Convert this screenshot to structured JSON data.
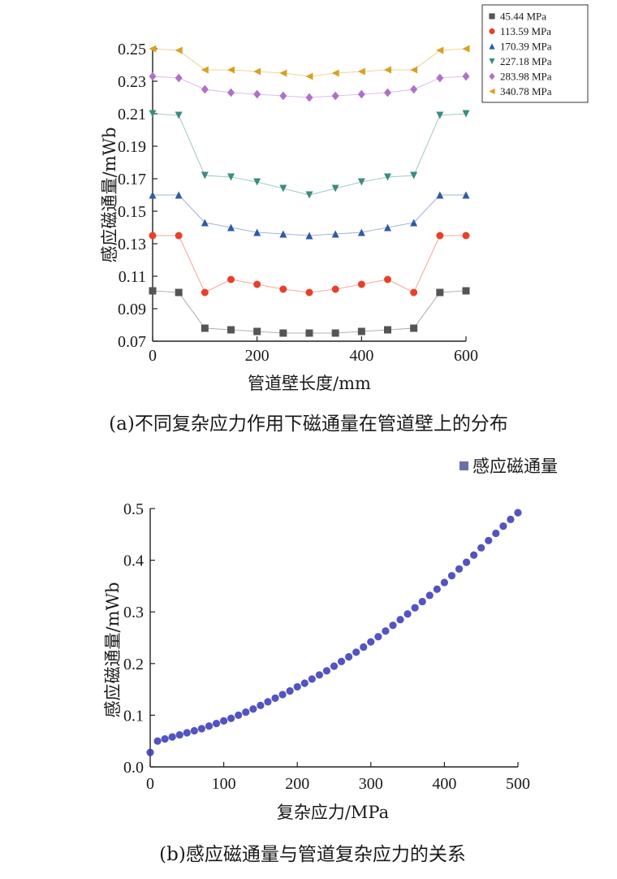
{
  "chart_data": [
    {
      "type": "line",
      "caption": "(a)不同复杂应力作用下磁通量在管道壁上的分布",
      "xlabel": "管道壁长度/mm",
      "ylabel": "感应磁通量/mWb",
      "xlim": [
        0,
        600
      ],
      "ylim": [
        0.07,
        0.25
      ],
      "xticks": [
        "0",
        "200",
        "400",
        "600"
      ],
      "yticks": [
        "0.07",
        "0.09",
        "0.11",
        "0.13",
        "0.15",
        "0.17",
        "0.19",
        "0.21",
        "0.23",
        "0.25"
      ],
      "grid": false,
      "legend": "top-right",
      "x": [
        0,
        50,
        100,
        150,
        200,
        250,
        300,
        350,
        400,
        450,
        500,
        550,
        600
      ],
      "series": [
        {
          "name": "45.44 MPa",
          "marker": "square",
          "color": "#555555",
          "values": [
            0.101,
            0.1,
            0.078,
            0.077,
            0.076,
            0.075,
            0.075,
            0.075,
            0.076,
            0.077,
            0.078,
            0.1,
            0.101
          ]
        },
        {
          "name": "113.59 MPa",
          "marker": "circle",
          "color": "#e8402a",
          "values": [
            0.135,
            0.135,
            0.1,
            0.108,
            0.105,
            0.102,
            0.1,
            0.102,
            0.105,
            0.108,
            0.1,
            0.135,
            0.135
          ]
        },
        {
          "name": "170.39 MPa",
          "marker": "triangle",
          "color": "#2f5aa8",
          "values": [
            0.16,
            0.16,
            0.143,
            0.14,
            0.137,
            0.136,
            0.135,
            0.136,
            0.137,
            0.14,
            0.143,
            0.16,
            0.16
          ]
        },
        {
          "name": "227.18 MPa",
          "marker": "triangle-down",
          "color": "#3a8c80",
          "values": [
            0.21,
            0.209,
            0.172,
            0.171,
            0.168,
            0.164,
            0.16,
            0.164,
            0.168,
            0.171,
            0.172,
            0.209,
            0.21
          ]
        },
        {
          "name": "283.98 MPa",
          "marker": "diamond",
          "color": "#b070c8",
          "values": [
            0.233,
            0.232,
            0.225,
            0.223,
            0.222,
            0.221,
            0.22,
            0.221,
            0.222,
            0.223,
            0.225,
            0.232,
            0.233
          ]
        },
        {
          "name": "340.78 MPa",
          "marker": "triangle-left",
          "color": "#d9a020",
          "values": [
            0.25,
            0.249,
            0.237,
            0.237,
            0.236,
            0.235,
            0.233,
            0.235,
            0.236,
            0.237,
            0.237,
            0.249,
            0.25
          ]
        }
      ]
    },
    {
      "type": "scatter",
      "caption": "(b)感应磁通量与管道复杂应力的关系",
      "xlabel": "复杂应力/MPa",
      "ylabel": "感应磁通量/mWb",
      "xlim": [
        0,
        500
      ],
      "ylim": [
        0,
        0.5
      ],
      "xticks": [
        "0",
        "100",
        "200",
        "300",
        "400",
        "500"
      ],
      "yticks": [
        "0.0",
        "0.1",
        "0.2",
        "0.3",
        "0.4",
        "0.5"
      ],
      "grid": false,
      "legend": "top-right",
      "series": [
        {
          "name": "感应磁通量",
          "color": "#3535b8",
          "x": [
            0,
            10,
            20,
            30,
            40,
            50,
            60,
            70,
            80,
            90,
            100,
            110,
            120,
            130,
            140,
            150,
            160,
            170,
            180,
            190,
            200,
            210,
            220,
            230,
            240,
            250,
            260,
            270,
            280,
            290,
            300,
            310,
            320,
            330,
            340,
            350,
            360,
            370,
            380,
            390,
            400,
            410,
            420,
            430,
            440,
            450,
            460,
            470,
            480,
            490,
            500
          ],
          "y": [
            0.028,
            0.05,
            0.054,
            0.058,
            0.062,
            0.066,
            0.07,
            0.074,
            0.079,
            0.084,
            0.089,
            0.094,
            0.1,
            0.106,
            0.112,
            0.119,
            0.126,
            0.133,
            0.14,
            0.147,
            0.155,
            0.162,
            0.17,
            0.178,
            0.186,
            0.195,
            0.204,
            0.213,
            0.222,
            0.232,
            0.242,
            0.252,
            0.263,
            0.274,
            0.285,
            0.296,
            0.308,
            0.32,
            0.332,
            0.344,
            0.357,
            0.37,
            0.383,
            0.396,
            0.41,
            0.424,
            0.438,
            0.452,
            0.466,
            0.479,
            0.492
          ]
        }
      ]
    }
  ]
}
